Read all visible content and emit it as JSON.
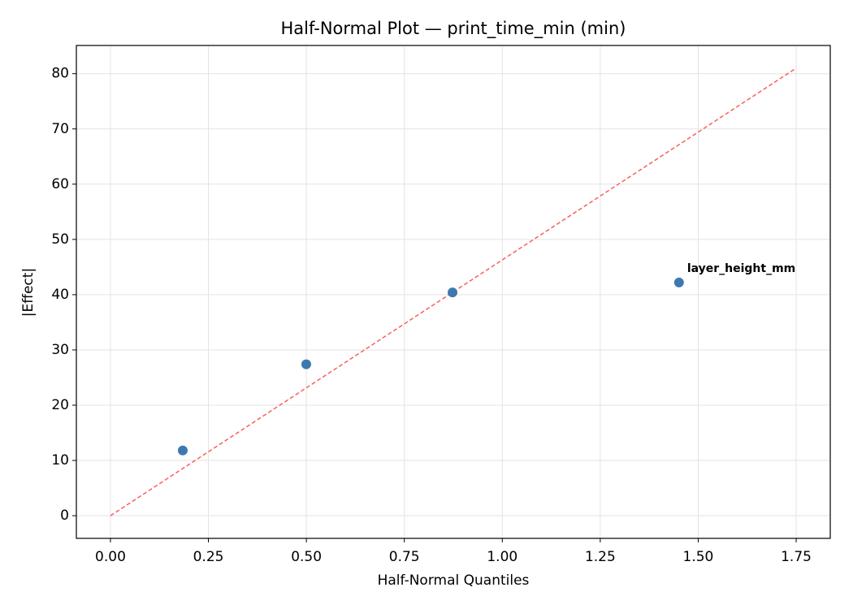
{
  "chart_data": {
    "type": "scatter",
    "title": "Half-Normal Plot — print_time_min (min)",
    "x_label": "Half-Normal Quantiles",
    "y_label": "|Effect|",
    "xlim": [
      -0.087,
      1.837
    ],
    "ylim": [
      -4.1,
      85.1
    ],
    "xticks": [
      {
        "value": 0,
        "label": "0.00"
      },
      {
        "value": 0.25,
        "label": "0.25"
      },
      {
        "value": 0.5,
        "label": "0.50"
      },
      {
        "value": 0.75,
        "label": "0.75"
      },
      {
        "value": 1,
        "label": "1.00"
      },
      {
        "value": 1.25,
        "label": "1.25"
      },
      {
        "value": 1.5,
        "label": "1.50"
      },
      {
        "value": 1.75,
        "label": "1.75"
      }
    ],
    "yticks": [
      0,
      10,
      20,
      30,
      40,
      50,
      60,
      70,
      80
    ],
    "grid": true,
    "series": [
      {
        "kind": "points",
        "color": "#3d79b0",
        "x": [
          0.1845,
          0.4997,
          0.873,
          1.451
        ],
        "values": [
          11.8,
          27.4,
          40.4,
          42.2
        ],
        "point_labels": [
          null,
          null,
          null,
          "layer_height_mm"
        ],
        "label_color": "#ff0000"
      },
      {
        "kind": "dashed-line",
        "color": "#f5615c",
        "x": [
          0,
          1.75
        ],
        "values": [
          0,
          81
        ]
      }
    ]
  }
}
